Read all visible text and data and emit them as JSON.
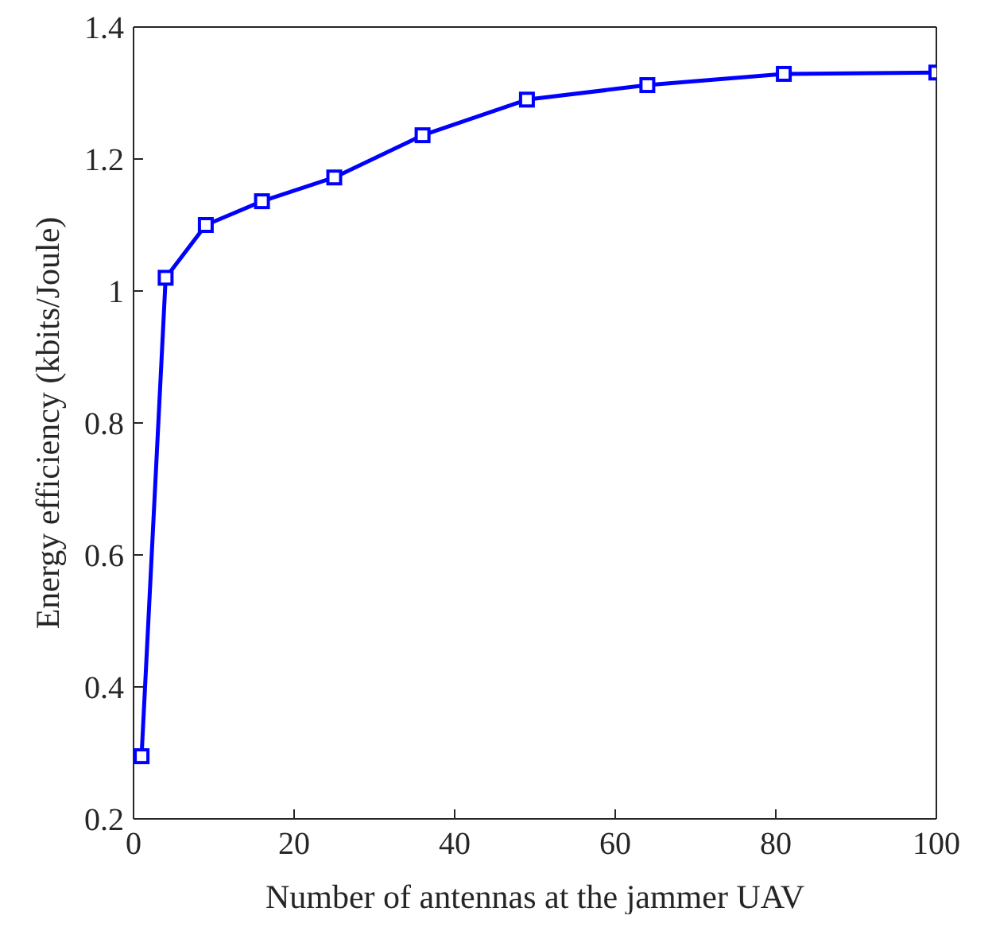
{
  "chart_data": {
    "type": "line",
    "xlabel": "Number of antennas at the jammer UAV",
    "ylabel": "Energy efficiency (kbits/Joule)",
    "x": [
      1,
      4,
      9,
      16,
      25,
      36,
      49,
      64,
      81,
      100
    ],
    "series": [
      {
        "color": "#0000ff",
        "values": [
          0.295,
          1.02,
          1.1,
          1.136,
          1.172,
          1.236,
          1.29,
          1.312,
          1.329,
          1.331
        ]
      }
    ],
    "xlim": [
      0,
      100
    ],
    "xticks": [
      0,
      20,
      40,
      60,
      80,
      100
    ],
    "ylim": [
      0.2,
      1.4
    ],
    "yticks": [
      0.2,
      0.4,
      0.6,
      0.8,
      1,
      1.2,
      1.4
    ],
    "grid": false,
    "legend": false,
    "marker": "square",
    "line_style": "solid"
  }
}
